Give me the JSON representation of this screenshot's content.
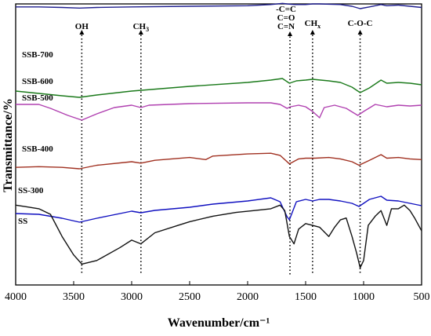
{
  "chart_data": {
    "type": "line",
    "xlabel": "Wavenumber/cm⁻¹",
    "ylabel": "Transmittance/%",
    "xlim": [
      4000,
      500
    ],
    "x_reversed": true,
    "xticks": [
      "4000",
      "3500",
      "3000",
      "2500",
      "2000",
      "1500",
      "1000",
      "500"
    ],
    "grid": false,
    "y_ticks_shown": false,
    "band_markers": [
      {
        "label": "OH",
        "x": 3430
      },
      {
        "label": "CH",
        "sub": "3",
        "x": 2920
      },
      {
        "label": "-C=C",
        "x": 1635
      },
      {
        "label": "C=O",
        "x": 1635
      },
      {
        "label": "C=N",
        "x": 1635
      },
      {
        "label": "CH",
        "sub": "x",
        "x": 1440
      },
      {
        "label": "C-O-C",
        "x": 1030
      }
    ],
    "series": [
      {
        "name": "SSB-700",
        "color": "#1f1f8f",
        "x": [
          4000,
          3800,
          3600,
          3450,
          3300,
          3000,
          2500,
          2000,
          1800,
          1700,
          1660,
          1600,
          1500,
          1440,
          1380,
          1200,
          1100,
          1030,
          950,
          850,
          800,
          700,
          600,
          500
        ],
        "y": [
          95,
          95,
          94,
          93,
          94,
          95,
          96,
          97,
          99,
          101,
          100,
          99,
          99,
          100,
          100,
          99,
          96,
          92,
          95,
          99,
          97,
          98,
          96,
          94
        ]
      },
      {
        "name": "SSB-600",
        "color": "#1b7a1b",
        "x": [
          4000,
          3800,
          3600,
          3450,
          3300,
          3000,
          2500,
          2000,
          1800,
          1700,
          1640,
          1580,
          1500,
          1440,
          1300,
          1200,
          1100,
          1030,
          950,
          850,
          800,
          700,
          600,
          500
        ],
        "y": [
          72,
          69,
          66,
          64,
          67,
          72,
          78,
          83,
          86,
          88,
          82,
          85,
          86,
          87,
          85,
          83,
          77,
          70,
          76,
          86,
          82,
          83,
          82,
          80
        ]
      },
      {
        "name": "SSB-500",
        "color": "#b040b0",
        "x": [
          4000,
          3800,
          3700,
          3550,
          3430,
          3300,
          3150,
          3000,
          2920,
          2850,
          2500,
          2000,
          1800,
          1720,
          1660,
          1630,
          1560,
          1500,
          1440,
          1380,
          1340,
          1250,
          1150,
          1050,
          1000,
          900,
          800,
          700,
          600,
          500
        ],
        "y": [
          67,
          67,
          62,
          53,
          47,
          55,
          63,
          66,
          63,
          66,
          68,
          69,
          69,
          67,
          62,
          64,
          66,
          64,
          58,
          50,
          63,
          66,
          62,
          53,
          58,
          67,
          64,
          66,
          65,
          66
        ]
      },
      {
        "name": "SSB-400",
        "color": "#a03020",
        "x": [
          4000,
          3800,
          3600,
          3450,
          3300,
          3000,
          2920,
          2800,
          2500,
          2360,
          2300,
          2000,
          1800,
          1720,
          1640,
          1560,
          1500,
          1420,
          1300,
          1200,
          1100,
          1040,
          950,
          850,
          800,
          700,
          600,
          500
        ],
        "y": [
          32,
          33,
          32,
          30,
          35,
          40,
          38,
          42,
          46,
          43,
          48,
          51,
          52,
          49,
          37,
          44,
          45,
          45,
          46,
          44,
          40,
          35,
          42,
          50,
          45,
          46,
          44,
          43
        ]
      },
      {
        "name": "SS-300",
        "color": "#1010c0",
        "x": [
          4000,
          3800,
          3600,
          3450,
          3300,
          3000,
          2920,
          2800,
          2500,
          2300,
          2000,
          1800,
          1720,
          1660,
          1640,
          1580,
          1500,
          1440,
          1380,
          1300,
          1200,
          1100,
          1040,
          950,
          850,
          800,
          700,
          600,
          500
        ],
        "y": [
          18,
          17,
          12,
          7,
          12,
          21,
          19,
          22,
          26,
          30,
          34,
          38,
          33,
          14,
          10,
          33,
          36,
          34,
          36,
          36,
          34,
          31,
          27,
          36,
          40,
          35,
          34,
          31,
          28
        ]
      },
      {
        "name": "SS",
        "color": "#111111",
        "x": [
          4000,
          3900,
          3800,
          3700,
          3600,
          3500,
          3430,
          3300,
          3100,
          3000,
          2920,
          2800,
          2600,
          2500,
          2300,
          2100,
          1950,
          1800,
          1720,
          1680,
          1640,
          1600,
          1560,
          1500,
          1440,
          1380,
          1300,
          1250,
          1200,
          1150,
          1100,
          1060,
          1030,
          1000,
          960,
          900,
          850,
          800,
          760,
          700,
          650,
          600,
          560,
          500
        ],
        "y": [
          5,
          4,
          3,
          0,
          -12,
          -22,
          -27,
          -25,
          -18,
          -14,
          -16,
          -10,
          -6,
          -4,
          -1,
          1,
          2,
          3,
          5,
          2,
          -12,
          -16,
          -8,
          -5,
          -6,
          -7,
          -12,
          -7,
          -3,
          -2,
          -12,
          -21,
          -29,
          -25,
          -6,
          -1,
          2,
          -6,
          3,
          3,
          5,
          2,
          -2,
          -9
        ]
      }
    ]
  }
}
